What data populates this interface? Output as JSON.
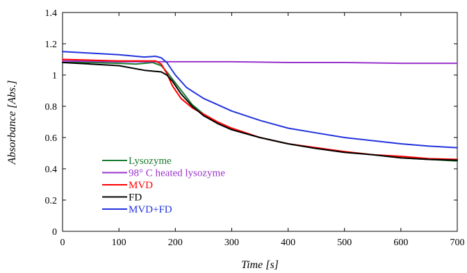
{
  "chart_data": {
    "type": "line",
    "xlabel": "Time [s]",
    "ylabel": "Absorbance [Abs.]",
    "xlim": [
      0,
      700
    ],
    "ylim": [
      0,
      1.4
    ],
    "xticks": [
      "0",
      "100",
      "200",
      "300",
      "400",
      "500",
      "600",
      "700"
    ],
    "yticks": [
      "0",
      "0.2",
      "0.4",
      "0.6",
      "0.8",
      "1",
      "1.2",
      "1.4"
    ],
    "grid": false,
    "legend_position": "bottom-left",
    "series": [
      {
        "name": "Lysozyme",
        "color": "#1a7a2e",
        "x": [
          0,
          50,
          100,
          130,
          160,
          175,
          185,
          200,
          215,
          230,
          250,
          275,
          300,
          350,
          400,
          450,
          500,
          550,
          600,
          650,
          700
        ],
        "y": [
          1.08,
          1.08,
          1.075,
          1.07,
          1.08,
          1.06,
          1.02,
          0.95,
          0.88,
          0.81,
          0.75,
          0.69,
          0.65,
          0.6,
          0.56,
          0.53,
          0.51,
          0.49,
          0.47,
          0.46,
          0.45
        ]
      },
      {
        "name": "98° C heated lysozyme",
        "color": "#9933cc",
        "x": [
          0,
          100,
          200,
          300,
          400,
          500,
          600,
          700
        ],
        "y": [
          1.09,
          1.085,
          1.085,
          1.085,
          1.08,
          1.08,
          1.075,
          1.075
        ]
      },
      {
        "name": "MVD",
        "color": "#ff0000",
        "x": [
          0,
          50,
          100,
          150,
          165,
          175,
          185,
          195,
          210,
          230,
          250,
          275,
          300,
          350,
          400,
          450,
          500,
          550,
          600,
          650,
          700
        ],
        "y": [
          1.1,
          1.095,
          1.09,
          1.09,
          1.09,
          1.07,
          1.01,
          0.93,
          0.85,
          0.79,
          0.75,
          0.7,
          0.66,
          0.6,
          0.56,
          0.535,
          0.51,
          0.49,
          0.48,
          0.465,
          0.46
        ]
      },
      {
        "name": "FD",
        "color": "#000000",
        "x": [
          0,
          50,
          100,
          145,
          175,
          185,
          195,
          210,
          230,
          250,
          275,
          300,
          350,
          400,
          450,
          500,
          550,
          600,
          650,
          700
        ],
        "y": [
          1.08,
          1.07,
          1.06,
          1.03,
          1.02,
          1.0,
          0.96,
          0.88,
          0.8,
          0.74,
          0.69,
          0.65,
          0.6,
          0.56,
          0.53,
          0.505,
          0.49,
          0.47,
          0.46,
          0.455
        ]
      },
      {
        "name": "MVD+FD",
        "color": "#2233dd",
        "x": [
          0,
          50,
          100,
          145,
          165,
          175,
          185,
          200,
          220,
          250,
          275,
          300,
          350,
          400,
          450,
          500,
          550,
          600,
          650,
          700
        ],
        "y": [
          1.15,
          1.14,
          1.13,
          1.115,
          1.12,
          1.11,
          1.08,
          1.0,
          0.92,
          0.85,
          0.81,
          0.77,
          0.71,
          0.66,
          0.63,
          0.6,
          0.58,
          0.56,
          0.545,
          0.535
        ]
      }
    ]
  }
}
